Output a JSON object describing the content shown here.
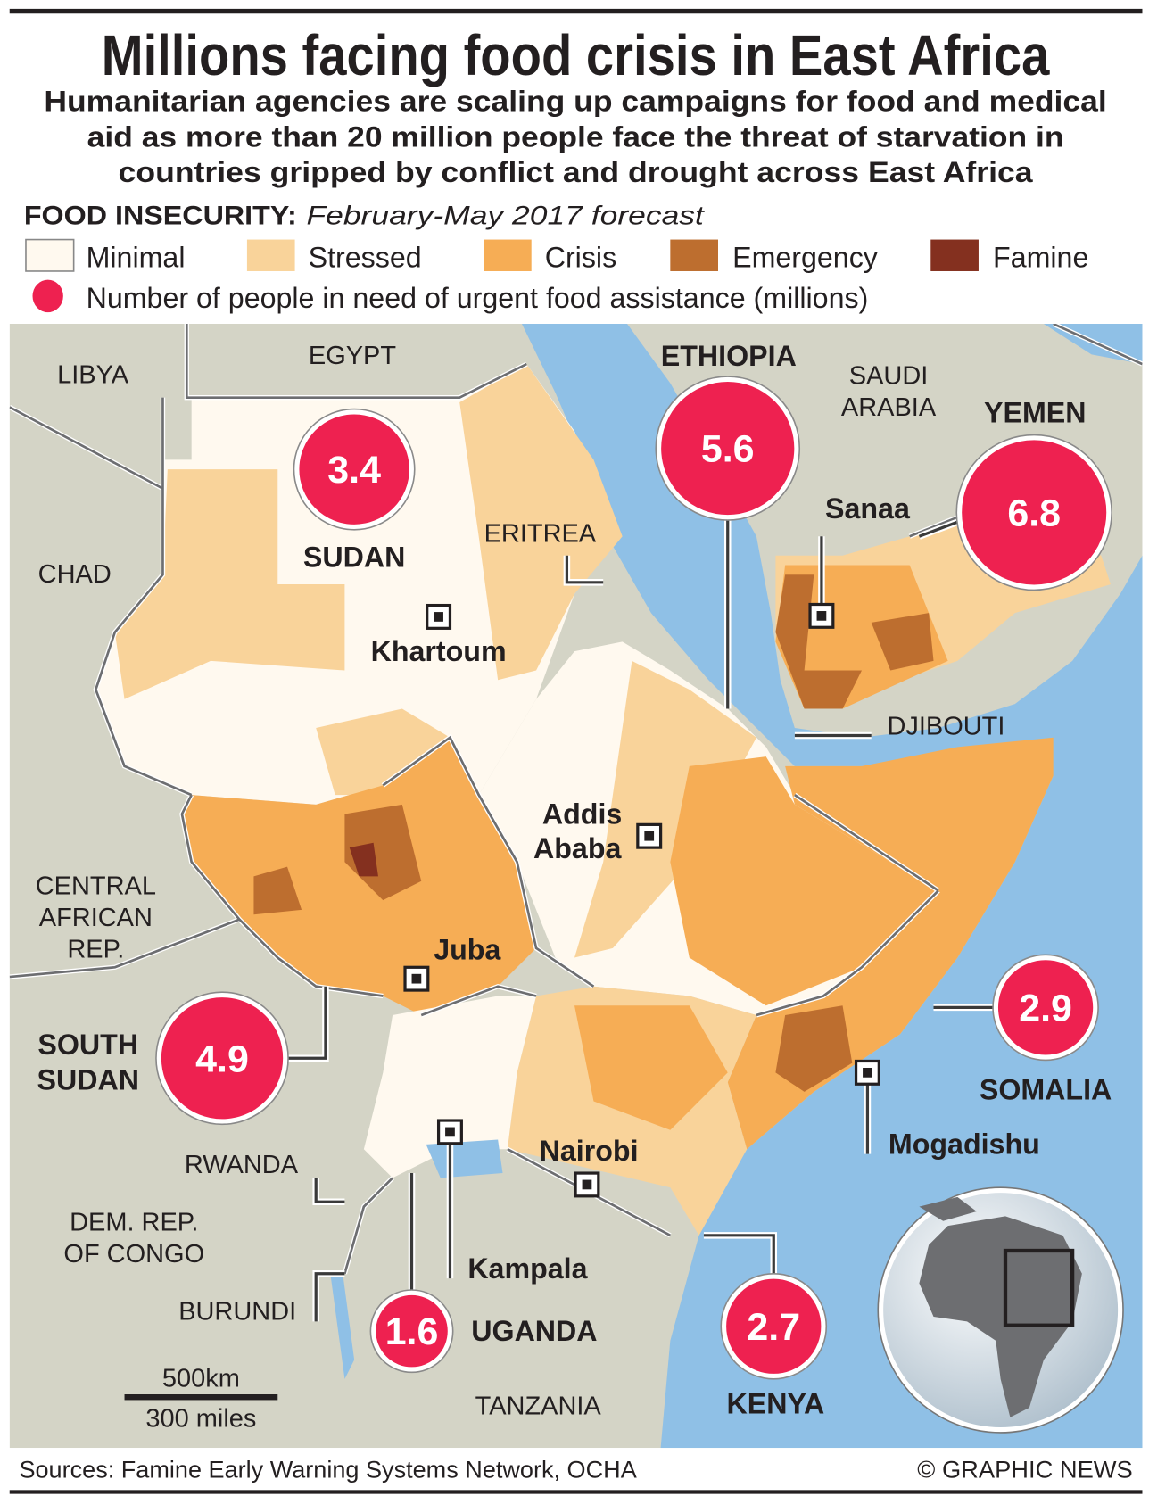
{
  "title": "Millions facing food crisis in East Africa",
  "subtitle": [
    "Humanitarian agencies are scaling up campaigns for food and medical",
    "aid as more than 20 million people face the threat of starvation in",
    "countries gripped by conflict and drought across East Africa"
  ],
  "legend": {
    "heading": "FOOD INSECURITY:",
    "period": "February-May 2017 forecast",
    "items": [
      {
        "label": "Minimal",
        "color": "#fff9ef"
      },
      {
        "label": "Stressed",
        "color": "#f9d39a"
      },
      {
        "label": "Crisis",
        "color": "#f6ad55"
      },
      {
        "label": "Emergency",
        "color": "#bd6e2f"
      },
      {
        "label": "Famine",
        "color": "#84301f"
      }
    ],
    "bubble_label": "Number of people in need of urgent food assistance (millions)",
    "bubble_color": "#ee2150"
  },
  "map": {
    "neighbours": [
      "LIBYA",
      "EGYPT",
      "CHAD",
      "SAUDI",
      "ARABIA",
      "ERITREA",
      "CENTRAL",
      "AFRICAN",
      "REP.",
      "DJIBOUTI",
      "RWANDA",
      "DEM. REP.",
      "OF CONGO",
      "BURUNDI",
      "TANZANIA"
    ],
    "countries": [
      {
        "name": "SUDAN",
        "value": "3.4"
      },
      {
        "name": "ETHIOPIA",
        "value": "5.6"
      },
      {
        "name": "YEMEN",
        "value": "6.8"
      },
      {
        "name": "SOUTH",
        "name2": "SUDAN",
        "value": "4.9"
      },
      {
        "name": "UGANDA",
        "value": "1.6"
      },
      {
        "name": "KENYA",
        "value": "2.7"
      },
      {
        "name": "SOMALIA",
        "value": "2.9"
      }
    ],
    "capitals": [
      "Khartoum",
      "Addis",
      "Ababa",
      "Juba",
      "Nairobi",
      "Kampala",
      "Mogadishu",
      "Sanaa"
    ],
    "scale": {
      "km": "500km",
      "miles": "300 miles"
    }
  },
  "footer": {
    "sources": "Sources: Famine Early Warning Systems Network, OCHA",
    "credit": "© GRAPHIC NEWS"
  }
}
